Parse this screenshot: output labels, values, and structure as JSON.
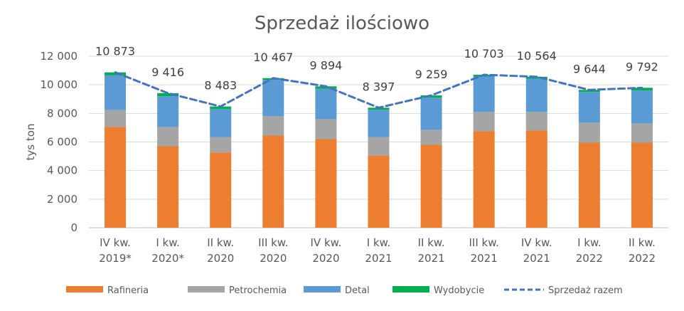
{
  "chart_data": {
    "type": "bar",
    "stacked": true,
    "title": "Sprzedaż ilościowo",
    "ylabel": "tys ton",
    "xlabel": "",
    "ylim": [
      0,
      12000
    ],
    "yticks": [
      "0",
      "2 000",
      "4 000",
      "6 000",
      "8 000",
      "10 000",
      "12 000"
    ],
    "ytick_values": [
      0,
      2000,
      4000,
      6000,
      8000,
      10000,
      12000
    ],
    "categories": [
      [
        "IV kw.",
        "2019*"
      ],
      [
        "I kw.",
        "2020*"
      ],
      [
        "II kw.",
        "2020"
      ],
      [
        "III kw.",
        "2020"
      ],
      [
        "IV kw.",
        "2020"
      ],
      [
        "I kw.",
        "2021"
      ],
      [
        "II kw.",
        "2021"
      ],
      [
        "III kw.",
        "2021"
      ],
      [
        "IV kw.",
        "2021"
      ],
      [
        "I kw.",
        "2022"
      ],
      [
        "II kw.",
        "2022"
      ]
    ],
    "series": [
      {
        "name": "Rafineria",
        "color": "#ED7D31",
        "values": [
          7050,
          5700,
          5250,
          6450,
          6200,
          5050,
          5800,
          6750,
          6800,
          5950,
          5950
        ]
      },
      {
        "name": "Petrochemia",
        "color": "#A5A5A5",
        "values": [
          1180,
          1350,
          1100,
          1350,
          1400,
          1300,
          1050,
          1350,
          1300,
          1400,
          1350
        ]
      },
      {
        "name": "Detal",
        "color": "#5B9BD5",
        "values": [
          2450,
          2150,
          1950,
          2550,
          2130,
          1900,
          2250,
          2480,
          2330,
          2150,
          2300
        ]
      },
      {
        "name": "Wydobycie",
        "color": "#00B050",
        "values": [
          190,
          216,
          183,
          117,
          164,
          147,
          159,
          123,
          134,
          144,
          192
        ]
      }
    ],
    "line_series": {
      "name": "Sprzedaż razem",
      "color": "#4472C4",
      "style": "dashed",
      "values": [
        10873,
        9416,
        8483,
        10467,
        9894,
        8397,
        9259,
        10703,
        10564,
        9644,
        9792
      ],
      "labels": [
        "10 873",
        "9 416",
        "8 483",
        "10 467",
        "9 894",
        "8 397",
        "9 259",
        "10 703",
        "10 564",
        "9 644",
        "9 792"
      ]
    },
    "grid": true,
    "legend_position": "bottom"
  }
}
